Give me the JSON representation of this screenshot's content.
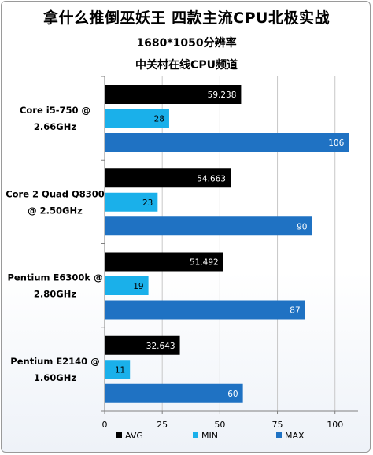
{
  "chart_data": {
    "type": "bar",
    "orientation": "horizontal",
    "title": "拿什么推倒巫妖王 四款主流CPU北极实战",
    "subtitle": "1680*1050分辨率",
    "source": "中关村在线CPU频道",
    "categories": [
      [
        "Core i5-750 @",
        "2.66GHz"
      ],
      [
        "Core 2 Quad Q8300",
        "@ 2.50GHz"
      ],
      [
        "Pentium E6300k @",
        "2.80GHz"
      ],
      [
        "Pentium E2140 @",
        "1.60GHz"
      ]
    ],
    "series": [
      {
        "name": "AVG",
        "color": "#000000",
        "label_color": "#ffffff",
        "values": [
          59.238,
          54.663,
          51.492,
          32.643
        ]
      },
      {
        "name": "MIN",
        "color": "#1ab0ea",
        "label_color": "#000000",
        "values": [
          28,
          23,
          19,
          11
        ]
      },
      {
        "name": "MAX",
        "color": "#1f72c3",
        "label_color": "#ffffff",
        "values": [
          106,
          90,
          87,
          60
        ]
      }
    ],
    "xlim": [
      0,
      110
    ],
    "xticks": [
      0,
      25,
      50,
      75,
      100
    ],
    "grid": "vertical",
    "legend_position": "bottom"
  }
}
